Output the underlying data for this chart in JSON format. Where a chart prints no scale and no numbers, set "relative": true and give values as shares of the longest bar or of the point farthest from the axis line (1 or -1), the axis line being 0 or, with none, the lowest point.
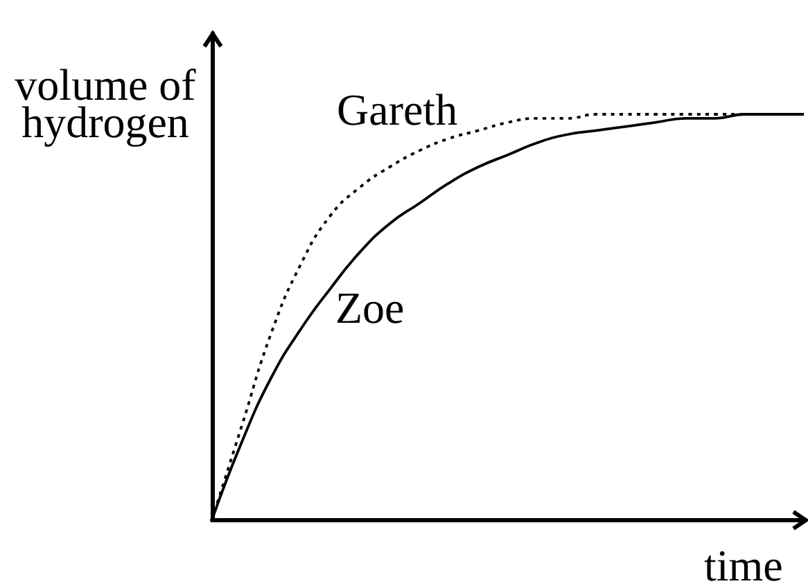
{
  "chart_data": {
    "type": "line",
    "xlabel": "time",
    "ylabel": "volume of hydrogen",
    "relative": true,
    "legend": false,
    "grid": false,
    "marker": "none",
    "categories": [
      null,
      null,
      null,
      null,
      null,
      null,
      null,
      null,
      null,
      null,
      null,
      null,
      null,
      null,
      null,
      null,
      null,
      null,
      null,
      null,
      null
    ],
    "series": [
      {
        "name": "Gareth",
        "color": "#000000",
        "line_style": "dotted",
        "values": [
          0,
          0.23,
          0.46,
          0.63,
          0.75,
          0.82,
          0.87,
          0.91,
          0.94,
          0.96,
          0.98,
          0.99,
          0.99,
          1,
          1,
          1,
          1,
          1,
          1,
          1,
          1
        ]
      },
      {
        "name": "Zoe",
        "color": "#000000",
        "line_style": "solid",
        "values": [
          0,
          0.19,
          0.35,
          0.47,
          0.57,
          0.66,
          0.73,
          0.78,
          0.83,
          0.87,
          0.9,
          0.93,
          0.95,
          0.96,
          0.97,
          0.98,
          0.99,
          0.99,
          1,
          1,
          1
        ]
      }
    ]
  }
}
